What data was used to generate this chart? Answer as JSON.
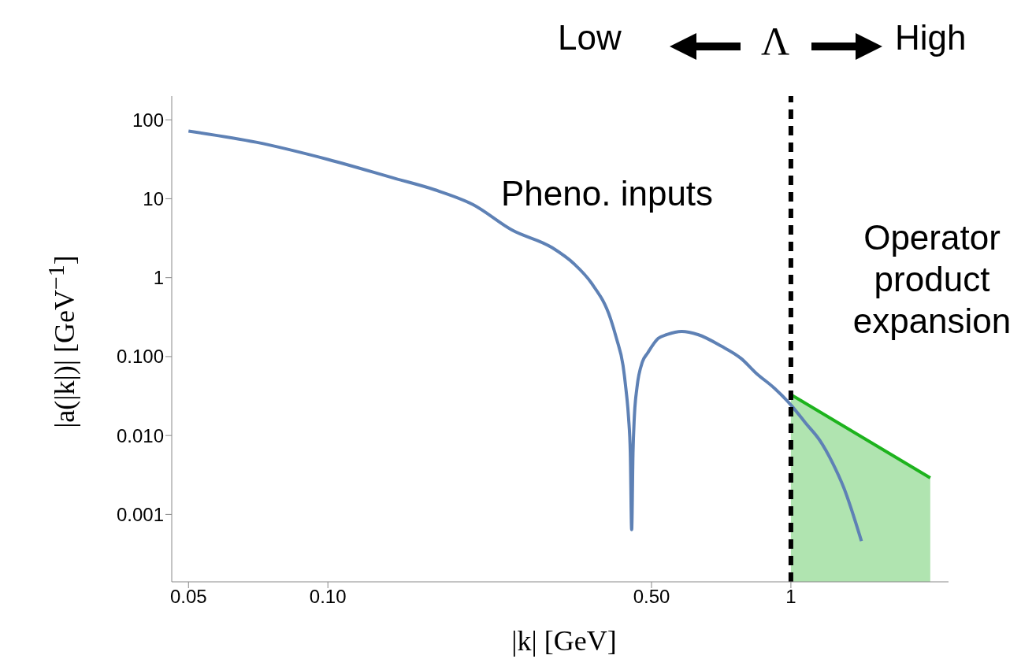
{
  "chart_data": {
    "type": "line",
    "xlabel": "|k|  [GeV]",
    "ylabel": "|a(|k|)|  [GeV$^{−1}$]",
    "log": "xy",
    "xlim": [
      0.046,
      2.19
    ],
    "ylim": [
      0.00014,
      200
    ],
    "xticks": [
      0.05,
      {
        "value": 0.1,
        "label": "0.10"
      },
      {
        "value": 0.5,
        "label": "0.50"
      },
      1
    ],
    "yticks": [
      {
        "value": 0.001,
        "label": "0.001"
      },
      {
        "value": 0.01,
        "label": "0.010"
      },
      {
        "value": 0.1,
        "label": "0.100"
      },
      1,
      10,
      100
    ],
    "grid": false,
    "marker": "none",
    "series": [
      {
        "color": "#5e81b5",
        "x": [
          0.05,
          0.07,
          0.1,
          0.14,
          0.17,
          0.206,
          0.25,
          0.305,
          0.34,
          0.371,
          0.408,
          0.42,
          0.434,
          0.44,
          0.446,
          0.45,
          0.453,
          0.456,
          0.459,
          0.465,
          0.478,
          0.49,
          0.517,
          0.54,
          0.581,
          0.63,
          0.707,
          0.78,
          0.843,
          0.92,
          1.0,
          1.08,
          1.154,
          1.23,
          1.3,
          1.42
        ],
        "values": [
          72,
          52,
          31.5,
          18,
          13,
          8.4,
          4.0,
          2.4,
          1.5,
          0.85,
          0.3,
          0.17,
          0.077,
          0.04,
          0.017,
          0.006,
          0.00064,
          0.006,
          0.017,
          0.04,
          0.086,
          0.11,
          0.17,
          0.19,
          0.208,
          0.19,
          0.136,
          0.095,
          0.061,
          0.04,
          0.0244,
          0.014,
          0.0087,
          0.0045,
          0.0022,
          0.00046
        ]
      },
      {
        "type": "area",
        "color": "#1db31d",
        "x": [
          1,
          2
        ],
        "values": [
          0.033,
          0.0029
        ]
      }
    ],
    "ref_lines": [
      {
        "axis": "x",
        "value": 1,
        "color": "#000000",
        "line_style": "dashed"
      }
    ],
    "annotations": [
      "Pheno. inputs",
      "Operator product expansion",
      "Low",
      "Λ",
      "High"
    ]
  }
}
